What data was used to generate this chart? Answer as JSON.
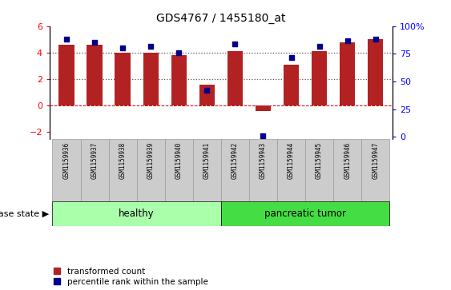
{
  "title": "GDS4767 / 1455180_at",
  "samples": [
    "GSM1159936",
    "GSM1159937",
    "GSM1159938",
    "GSM1159939",
    "GSM1159940",
    "GSM1159941",
    "GSM1159942",
    "GSM1159943",
    "GSM1159944",
    "GSM1159945",
    "GSM1159946",
    "GSM1159947"
  ],
  "bar_values": [
    4.6,
    4.6,
    4.0,
    4.0,
    3.8,
    1.6,
    4.1,
    -0.4,
    3.1,
    4.1,
    4.8,
    5.0
  ],
  "scatter_pct": [
    88,
    85,
    80,
    82,
    76,
    42,
    84,
    1,
    72,
    82,
    87,
    88
  ],
  "bar_color": "#B22222",
  "scatter_color": "#00008B",
  "ylim_left": [
    -2.5,
    6.0
  ],
  "ylim_right": [
    -1.5625,
    100
  ],
  "yticks_left": [
    -2,
    0,
    2,
    4,
    6
  ],
  "yticks_right": [
    0,
    25,
    50,
    75,
    100
  ],
  "groups": [
    {
      "label": "healthy",
      "start": 0,
      "end": 5,
      "color": "#AAFFAA"
    },
    {
      "label": "pancreatic tumor",
      "start": 6,
      "end": 11,
      "color": "#44DD44"
    }
  ],
  "disease_state_label": "disease state",
  "legend_bar_label": "transformed count",
  "legend_scatter_label": "percentile rank within the sample",
  "plot_bg_color": "#FFFFFF",
  "xtick_bg_color": "#CCCCCC",
  "xtick_border_color": "#999999"
}
